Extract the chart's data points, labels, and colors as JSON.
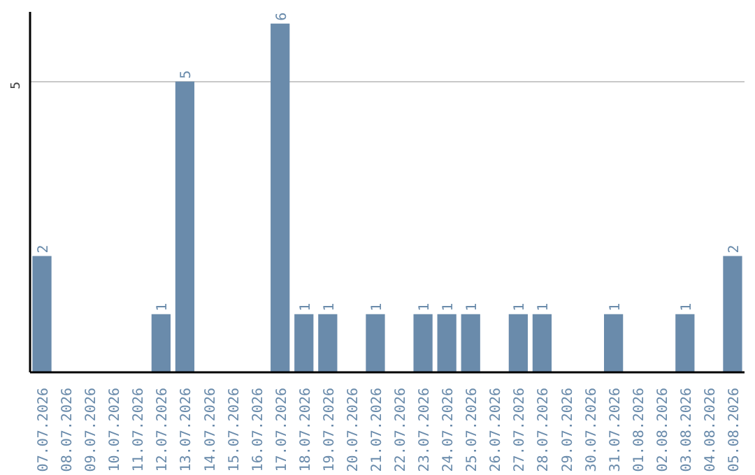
{
  "chart_data": {
    "type": "bar",
    "categories": [
      "07.07.2026",
      "08.07.2026",
      "09.07.2026",
      "10.07.2026",
      "11.07.2026",
      "12.07.2026",
      "13.07.2026",
      "14.07.2026",
      "15.07.2026",
      "16.07.2026",
      "17.07.2026",
      "18.07.2026",
      "19.07.2026",
      "20.07.2026",
      "21.07.2026",
      "22.07.2026",
      "23.07.2026",
      "24.07.2026",
      "25.07.2026",
      "26.07.2026",
      "27.07.2026",
      "28.07.2026",
      "29.07.2026",
      "30.07.2026",
      "31.07.2026",
      "01.08.2026",
      "02.08.2026",
      "03.08.2026",
      "04.08.2026",
      "05.08.2026"
    ],
    "values": [
      2,
      0,
      0,
      0,
      0,
      1,
      5,
      0,
      0,
      0,
      6,
      1,
      1,
      0,
      1,
      0,
      1,
      1,
      1,
      0,
      1,
      1,
      0,
      0,
      1,
      0,
      0,
      1,
      0,
      2
    ],
    "value_labels": [
      "2",
      null,
      null,
      null,
      null,
      "1",
      "5",
      null,
      null,
      null,
      "6",
      "1",
      "1",
      null,
      "1",
      null,
      "1",
      "1",
      "1",
      null,
      "1",
      "1",
      null,
      null,
      "1",
      null,
      null,
      "1",
      null,
      "2"
    ],
    "color": "#6a8bab",
    "ylim": [
      0,
      6.2
    ],
    "yticks": [
      5
    ],
    "grid": "y"
  }
}
